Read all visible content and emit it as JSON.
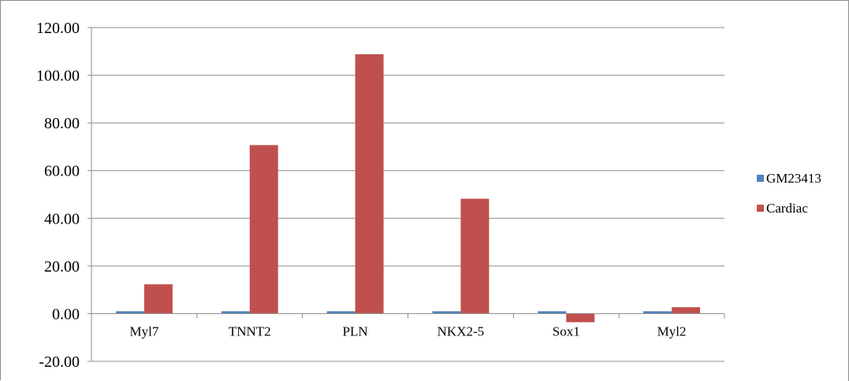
{
  "chart_data": {
    "type": "bar",
    "title": "",
    "xlabel": "",
    "ylabel": "",
    "categories": [
      "Myl7",
      "TNNT2",
      "PLN",
      "NKX2-5",
      "Sox1",
      "Myl2"
    ],
    "series": [
      {
        "name": "GM23413",
        "color": "#4f81bd",
        "values": [
          1.0,
          1.0,
          1.0,
          1.0,
          1.0,
          1.0
        ]
      },
      {
        "name": "Cardiac",
        "color": "#c0504d",
        "values": [
          12.3,
          70.7,
          108.8,
          48.2,
          -3.6,
          2.7
        ]
      }
    ],
    "ylim": [
      -20,
      120
    ],
    "yticks": [
      -20,
      0,
      20,
      40,
      60,
      80,
      100,
      120
    ],
    "ytick_labels": [
      "-20.00",
      "0.00",
      "20.00",
      "40.00",
      "60.00",
      "80.00",
      "100.00",
      "120.00"
    ],
    "grid": true,
    "legend_position": "right"
  }
}
